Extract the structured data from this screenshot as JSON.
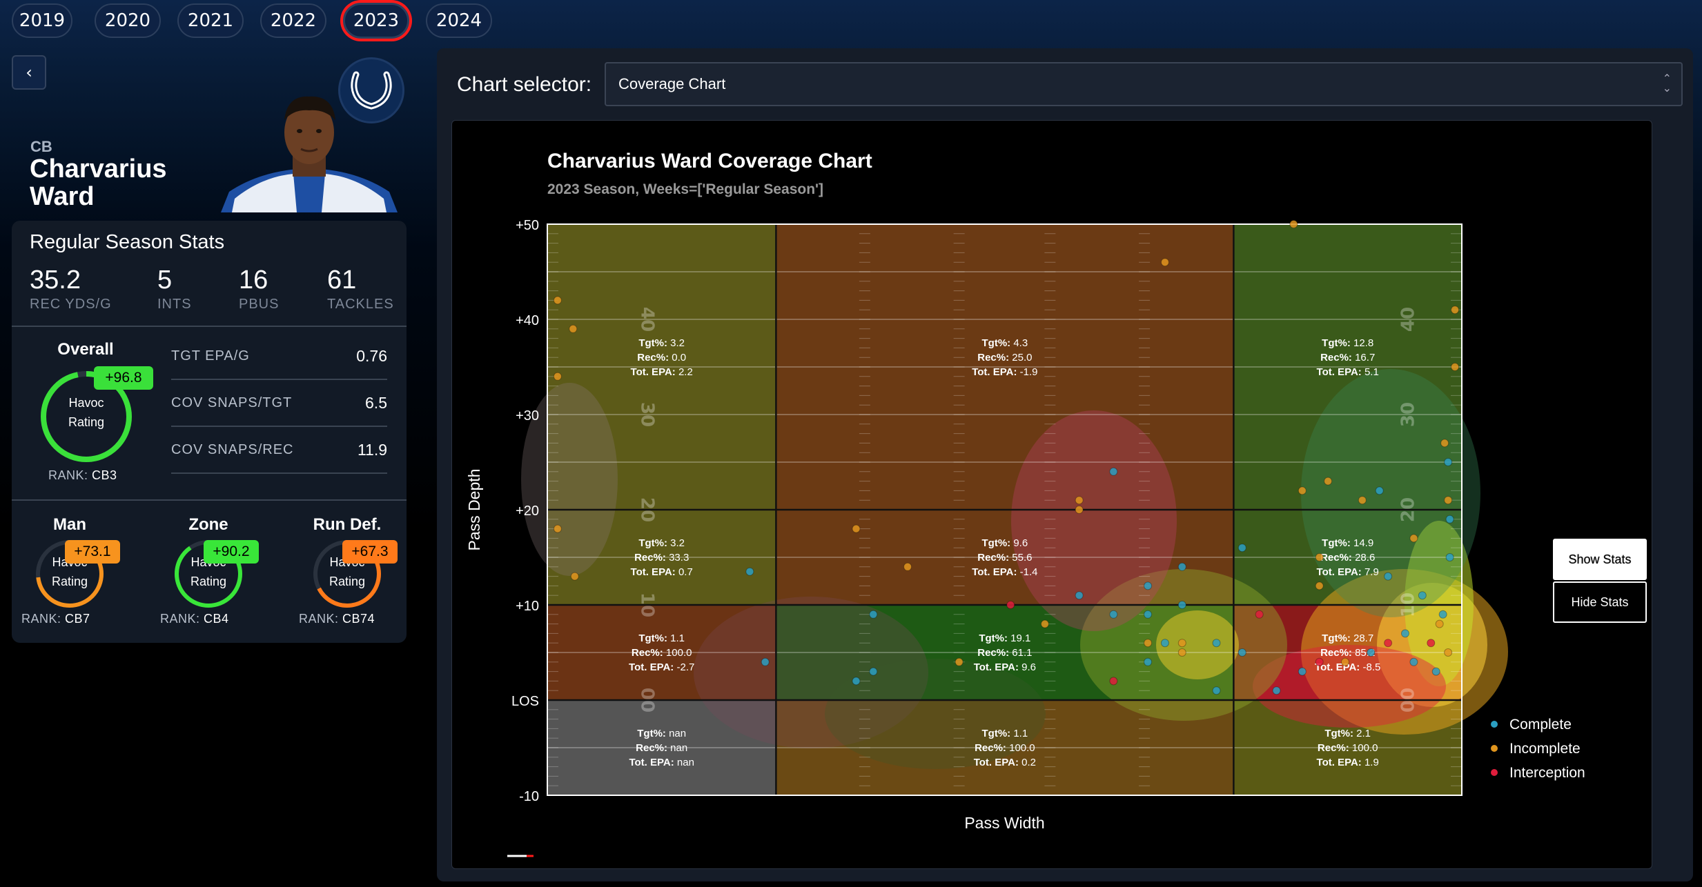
{
  "years": [
    {
      "label": "2019",
      "active": false
    },
    {
      "label": "2020",
      "active": false
    },
    {
      "label": "2021",
      "active": false
    },
    {
      "label": "2022",
      "active": false
    },
    {
      "label": "2023",
      "active": true
    },
    {
      "label": "2024",
      "active": false
    }
  ],
  "back_label": "‹",
  "player": {
    "position": "CB",
    "first": "Charvarius",
    "last": "Ward"
  },
  "regular_season": {
    "title": "Regular Season Stats",
    "stats": [
      {
        "value": "35.2",
        "label": "REC YDS/G"
      },
      {
        "value": "5",
        "label": "INTS"
      },
      {
        "value": "16",
        "label": "PBUS"
      },
      {
        "value": "61",
        "label": "TACKLES"
      }
    ]
  },
  "overall": {
    "title": "Overall",
    "badge": "+96.8",
    "label1": "Havoc",
    "label2": "Rating",
    "rank_label": "RANK:",
    "rank_value": "CB3",
    "ring_fraction": 0.968,
    "metrics": [
      {
        "label": "TGT EPA/G",
        "value": "0.76"
      },
      {
        "label": "COV SNAPS/TGT",
        "value": "6.5"
      },
      {
        "label": "COV SNAPS/REC",
        "value": "11.9"
      }
    ]
  },
  "sub_ratings": [
    {
      "title": "Man",
      "badge": "+73.1",
      "label1": "Havoc",
      "label2": "Rating",
      "rank_label": "RANK:",
      "rank_value": "CB7",
      "fraction": 0.731,
      "color": "#f7931e"
    },
    {
      "title": "Zone",
      "badge": "+90.2",
      "label1": "Havoc",
      "label2": "Rating",
      "rank_label": "RANK:",
      "rank_value": "CB4",
      "fraction": 0.902,
      "color": "#39e639"
    },
    {
      "title": "Run Def.",
      "badge": "+67.3",
      "label1": "Havoc",
      "label2": "Rating",
      "rank_label": "RANK:",
      "rank_value": "CB74",
      "fraction": 0.673,
      "color": "#ff7a1a"
    }
  ],
  "chart_selector": {
    "label": "Chart selector:",
    "value": "Coverage Chart"
  },
  "buttons": {
    "show_stats": "Show Stats",
    "hide_stats": "Hide Stats"
  },
  "colors": {
    "complete": "#2b9fc2",
    "incomplete": "#e0951e",
    "interception": "#e01d3c",
    "accent_red": "#ff1a1a"
  },
  "chart_data": {
    "type": "scatter",
    "title": "Charvarius Ward Coverage Chart",
    "subtitle": "2023 Season, Weeks=['Regular Season']",
    "xlabel": "Pass Width",
    "ylabel": "Pass Depth",
    "ylim": [
      -10,
      50
    ],
    "xlim": [
      0,
      53.3
    ],
    "y_ticks": [
      {
        "v": 50,
        "label": "+50"
      },
      {
        "v": 40,
        "label": "+40"
      },
      {
        "v": 30,
        "label": "+30"
      },
      {
        "v": 20,
        "label": "+20"
      },
      {
        "v": 10,
        "label": "+10"
      },
      {
        "v": 0,
        "label": "LOS"
      },
      {
        "v": -10,
        "label": "-10"
      }
    ],
    "yard_numbers": [
      "40",
      "30",
      "20",
      "10",
      "00"
    ],
    "x_bounds": [
      0,
      13.33,
      40,
      53.3
    ],
    "y_bounds": [
      -10,
      0,
      10,
      20,
      50
    ],
    "zones": [
      {
        "col": 0,
        "row": 0,
        "tgt": "3.2",
        "rec": "0.0",
        "epa": "2.2",
        "color": "#5c5a18"
      },
      {
        "col": 1,
        "row": 0,
        "tgt": "4.3",
        "rec": "25.0",
        "epa": "-1.9",
        "color": "#6b3a14"
      },
      {
        "col": 2,
        "row": 0,
        "tgt": "12.8",
        "rec": "16.7",
        "epa": "5.1",
        "color": "#3a5a1a"
      },
      {
        "col": 0,
        "row": 1,
        "tgt": "3.2",
        "rec": "33.3",
        "epa": "0.7",
        "color": "#5c5a18"
      },
      {
        "col": 1,
        "row": 1,
        "tgt": "9.6",
        "rec": "55.6",
        "epa": "-1.4",
        "color": "#6b3a14"
      },
      {
        "col": 2,
        "row": 1,
        "tgt": "14.9",
        "rec": "28.6",
        "epa": "7.9",
        "color": "#3a5a1a"
      },
      {
        "col": 0,
        "row": 2,
        "tgt": "1.1",
        "rec": "100.0",
        "epa": "-2.7",
        "color": "#6b3314"
      },
      {
        "col": 1,
        "row": 2,
        "tgt": "19.1",
        "rec": "61.1",
        "epa": "9.6",
        "color": "#1e5a14"
      },
      {
        "col": 2,
        "row": 2,
        "tgt": "28.7",
        "rec": "85.2",
        "epa": "-8.5",
        "color": "#8a1a1a"
      },
      {
        "col": 0,
        "row": 3,
        "tgt": "nan",
        "rec": "nan",
        "epa": "nan",
        "color": "#555555"
      },
      {
        "col": 1,
        "row": 3,
        "tgt": "1.1",
        "rec": "100.0",
        "epa": "0.2",
        "color": "#6b4a14"
      },
      {
        "col": 2,
        "row": 3,
        "tgt": "2.1",
        "rec": "100.0",
        "epa": "1.9",
        "color": "#5a5a14"
      }
    ],
    "stat_labels": {
      "tgt": "Tgt%:",
      "rec": "Rec%:",
      "epa": "Tot. EPA:"
    },
    "legend": [
      {
        "name": "Complete",
        "color": "#2b9fc2"
      },
      {
        "name": "Incomplete",
        "color": "#e0951e"
      },
      {
        "name": "Interception",
        "color": "#e01d3c"
      }
    ],
    "legend_position": "right",
    "points": [
      {
        "x": 0.6,
        "y": 42,
        "c": "incomplete"
      },
      {
        "x": 1.5,
        "y": 39,
        "c": "incomplete"
      },
      {
        "x": 0.6,
        "y": 34,
        "c": "incomplete"
      },
      {
        "x": 0.6,
        "y": 18,
        "c": "incomplete"
      },
      {
        "x": 1.6,
        "y": 13,
        "c": "incomplete"
      },
      {
        "x": 11.8,
        "y": 13.5,
        "c": "complete"
      },
      {
        "x": 12.7,
        "y": 4,
        "c": "complete"
      },
      {
        "x": 36,
        "y": 46,
        "c": "incomplete"
      },
      {
        "x": 43.5,
        "y": 50,
        "c": "incomplete"
      },
      {
        "x": 18,
        "y": 18,
        "c": "incomplete"
      },
      {
        "x": 21,
        "y": 14,
        "c": "incomplete"
      },
      {
        "x": 19,
        "y": 9,
        "c": "complete"
      },
      {
        "x": 18,
        "y": 2,
        "c": "complete"
      },
      {
        "x": 19,
        "y": 3,
        "c": "complete"
      },
      {
        "x": 24,
        "y": 4,
        "c": "incomplete"
      },
      {
        "x": 27,
        "y": 10,
        "c": "interception"
      },
      {
        "x": 29,
        "y": 8,
        "c": "incomplete"
      },
      {
        "x": 31,
        "y": 21,
        "c": "incomplete"
      },
      {
        "x": 31,
        "y": 20,
        "c": "incomplete"
      },
      {
        "x": 31,
        "y": 11,
        "c": "complete"
      },
      {
        "x": 33,
        "y": 24,
        "c": "complete"
      },
      {
        "x": 33,
        "y": 9,
        "c": "complete"
      },
      {
        "x": 35,
        "y": 12,
        "c": "complete"
      },
      {
        "x": 35,
        "y": 9,
        "c": "complete"
      },
      {
        "x": 35,
        "y": 6,
        "c": "incomplete"
      },
      {
        "x": 35,
        "y": 4,
        "c": "complete"
      },
      {
        "x": 33,
        "y": 2,
        "c": "interception"
      },
      {
        "x": 37,
        "y": 14,
        "c": "complete"
      },
      {
        "x": 37,
        "y": 10,
        "c": "complete"
      },
      {
        "x": 36,
        "y": 6,
        "c": "complete"
      },
      {
        "x": 37,
        "y": 6,
        "c": "incomplete"
      },
      {
        "x": 37,
        "y": 5,
        "c": "incomplete"
      },
      {
        "x": 39,
        "y": 6,
        "c": "complete"
      },
      {
        "x": 39,
        "y": 1,
        "c": "complete"
      },
      {
        "x": 40.5,
        "y": 16,
        "c": "complete"
      },
      {
        "x": 41.5,
        "y": 9,
        "c": "interception"
      },
      {
        "x": 40.5,
        "y": 5,
        "c": "complete"
      },
      {
        "x": 42.5,
        "y": 1,
        "c": "complete"
      },
      {
        "x": 44,
        "y": 22,
        "c": "incomplete"
      },
      {
        "x": 45.5,
        "y": 23,
        "c": "incomplete"
      },
      {
        "x": 45,
        "y": 15,
        "c": "incomplete"
      },
      {
        "x": 45,
        "y": 12,
        "c": "incomplete"
      },
      {
        "x": 45,
        "y": 4,
        "c": "interception"
      },
      {
        "x": 44,
        "y": 3,
        "c": "complete"
      },
      {
        "x": 47.5,
        "y": 21,
        "c": "incomplete"
      },
      {
        "x": 48.5,
        "y": 22,
        "c": "complete"
      },
      {
        "x": 49,
        "y": 13,
        "c": "complete"
      },
      {
        "x": 50.5,
        "y": 17,
        "c": "incomplete"
      },
      {
        "x": 51,
        "y": 11,
        "c": "complete"
      },
      {
        "x": 52,
        "y": 8,
        "c": "incomplete"
      },
      {
        "x": 52.3,
        "y": 27,
        "c": "incomplete"
      },
      {
        "x": 52.5,
        "y": 21,
        "c": "incomplete"
      },
      {
        "x": 52.6,
        "y": 19,
        "c": "complete"
      },
      {
        "x": 52.6,
        "y": 15,
        "c": "complete"
      },
      {
        "x": 52.9,
        "y": 41,
        "c": "incomplete"
      },
      {
        "x": 52.9,
        "y": 35,
        "c": "incomplete"
      },
      {
        "x": 52.5,
        "y": 25,
        "c": "complete"
      },
      {
        "x": 52.2,
        "y": 9,
        "c": "complete"
      },
      {
        "x": 51.5,
        "y": 6,
        "c": "interception"
      },
      {
        "x": 52.5,
        "y": 5,
        "c": "incomplete"
      },
      {
        "x": 51.8,
        "y": 3,
        "c": "complete"
      },
      {
        "x": 50.5,
        "y": 4,
        "c": "complete"
      },
      {
        "x": 48,
        "y": 5,
        "c": "complete"
      },
      {
        "x": 46.5,
        "y": 4,
        "c": "incomplete"
      },
      {
        "x": 50,
        "y": 7,
        "c": "complete"
      },
      {
        "x": 49,
        "y": 6,
        "c": "interception"
      }
    ]
  }
}
